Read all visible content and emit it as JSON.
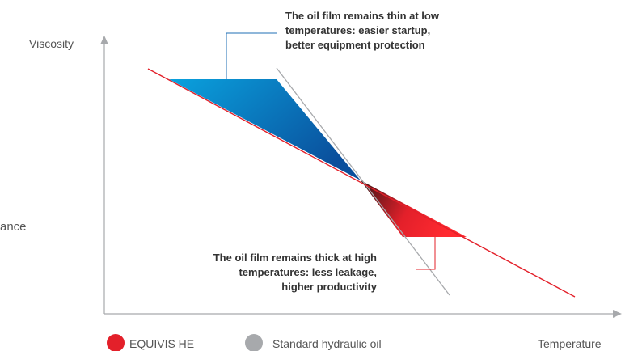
{
  "axes": {
    "y_label": "Viscosity",
    "x_label": "Temperature"
  },
  "annotations": {
    "top": [
      "The oil film remains thin at low",
      "temperatures: easier startup,",
      "better equipment protection"
    ],
    "bottom": [
      "The oil film remains thick at high",
      "temperatures: less leakage,",
      "higher productivity"
    ]
  },
  "edge_fragment": "ance",
  "legend": [
    {
      "label": "EQUIVIS HE",
      "color": "#e3202a"
    },
    {
      "label": "Standard hydraulic oil",
      "color": "#a7a9ac"
    }
  ],
  "colors": {
    "equivis_line": "#e3202a",
    "standard_line": "#a7a9ac",
    "axis": "#a7a9ac",
    "callout": "#1f6fb5",
    "low_temp_area": [
      "#0aa2de",
      "#0a4f9c"
    ],
    "high_temp_area": [
      "#3a1414",
      "#e3202a"
    ]
  }
}
